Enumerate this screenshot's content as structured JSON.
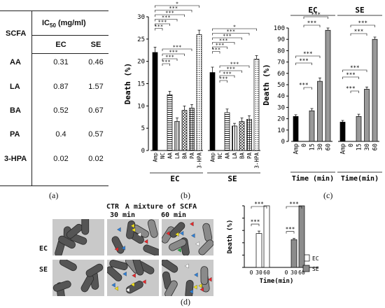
{
  "panel_a": {
    "title_prefix": "IC",
    "title_sub": "50",
    "title_suffix": " (mg/ml)",
    "col_header": "SCFA",
    "columns": [
      "EC",
      "SE"
    ],
    "rows": [
      {
        "name": "AA",
        "EC": "0.31",
        "SE": "0.46"
      },
      {
        "name": "LA",
        "EC": "0.87",
        "SE": "1.57"
      },
      {
        "name": "BA",
        "EC": "0.52",
        "SE": "0.67"
      },
      {
        "name": "PA",
        "EC": "0.4",
        "SE": "0.57"
      },
      {
        "name": "3-HPA",
        "EC": "0.02",
        "SE": "0.02"
      }
    ],
    "label": "(a)"
  },
  "panel_b_label": "(b)",
  "panel_c_label": "(c)",
  "panel_d_label": "(d)",
  "panel_d_headers": {
    "ctr": "CTR",
    "mixture": "A mixture of SCFA",
    "t30": "30  min",
    "t60": "60  min",
    "row_ec": "EC",
    "row_se": "SE"
  },
  "arrow_colors": {
    "red": "#e8262a",
    "blue": "#2f7fd6",
    "yellow": "#f2e21a",
    "white": "#ffffff",
    "green": "#27a844"
  },
  "chart_data": [
    {
      "id": "b",
      "type": "bar",
      "ylabel": "Death (%)",
      "ylim": [
        0,
        30
      ],
      "yticks": [
        0,
        5,
        10,
        15,
        20,
        25,
        30
      ],
      "categories": [
        "Amp",
        "NC",
        "AA",
        "LA",
        "BA",
        "PA",
        "3-HPA"
      ],
      "groups": [
        {
          "name": "EC",
          "values": [
            22,
            0,
            12.5,
            6.5,
            9,
            9.5,
            26
          ],
          "errors": [
            1.2,
            0,
            0.8,
            0.8,
            1.0,
            0.8,
            1.0
          ]
        },
        {
          "name": "SE",
          "values": [
            17.5,
            0,
            8.5,
            5.5,
            6.5,
            7,
            20.5
          ],
          "errors": [
            1.2,
            0,
            0.8,
            0.6,
            0.8,
            0.8,
            0.8
          ]
        }
      ],
      "significance": "***",
      "grid": false
    },
    {
      "id": "c",
      "type": "bar",
      "ylabel": "Death (%)",
      "xlabel": "Time (min)",
      "xlabel2": "Time(min)",
      "ylim": [
        0,
        100
      ],
      "yticks": [
        0,
        10,
        20,
        30,
        40,
        50,
        60,
        70,
        80,
        90,
        100
      ],
      "categories": [
        "Amp",
        "0",
        "15",
        "30",
        "60"
      ],
      "groups": [
        {
          "name": "EC",
          "values": [
            22,
            0,
            27,
            53,
            98
          ],
          "errors": [
            1.5,
            0,
            2,
            3,
            2
          ]
        },
        {
          "name": "SE",
          "values": [
            17,
            0,
            22,
            46,
            90
          ],
          "errors": [
            1.5,
            0,
            2,
            2,
            2
          ]
        }
      ],
      "significance": "***",
      "grid": false
    },
    {
      "id": "d",
      "type": "bar",
      "ylabel": "Death (%)",
      "xlabel": "Time(min)",
      "ylim": [
        0,
        100
      ],
      "yticks": [
        0,
        20,
        40,
        60,
        80,
        100
      ],
      "categories": [
        "0",
        "30",
        "60"
      ],
      "series": [
        {
          "name": "EC",
          "values": [
            0,
            55,
            100
          ],
          "errors": [
            0,
            4,
            0
          ],
          "color": "#ffffff"
        },
        {
          "name": "SE",
          "values": [
            0,
            45,
            100
          ],
          "errors": [
            0,
            2,
            0
          ],
          "color": "#8c8c8c"
        }
      ],
      "legend": "bottom-right",
      "significance": "***",
      "grid": false
    }
  ]
}
